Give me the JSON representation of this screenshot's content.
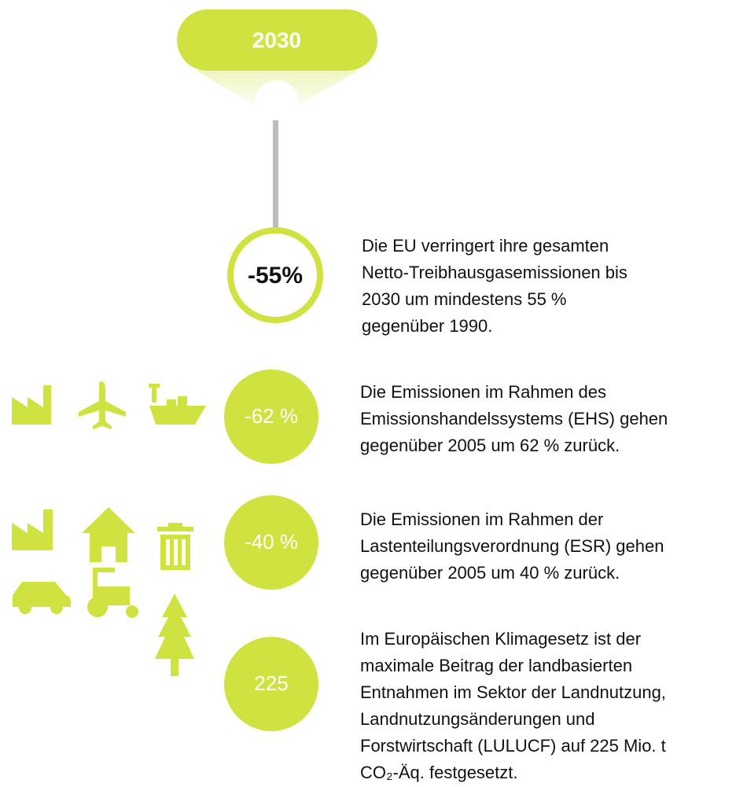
{
  "header": {
    "year": "2030"
  },
  "items": [
    {
      "figure": "-55%",
      "lines": [
        "Die EU verringert ihre gesamten",
        "Netto-Treibhausgasemissionen bis",
        "2030 um mindestens 55 %",
        "gegenüber 1990."
      ]
    },
    {
      "figure": "-62 %",
      "lines": [
        "Die Emissionen im Rahmen des",
        "Emissionshandelssystems (EHS) gehen",
        "gegenüber 2005 um 62 % zurück."
      ]
    },
    {
      "figure": "-40 %",
      "lines": [
        "Die Emissionen im Rahmen der",
        "Lastenteilungsverordnung (ESR) gehen",
        "gegenüber 2005 um 40 % zurück."
      ]
    },
    {
      "figure": "225",
      "lines": [
        "Im Europäischen Klimagesetz ist der",
        "maximale Beitrag der landbasierten",
        "Entnahmen im Sektor der Landnutzung,",
        "Landnutzungsänderungen und",
        "Forstwirtschaft (LULUCF) auf 225 Mio. t",
        "CO₂-Äq. festgesetzt."
      ]
    }
  ]
}
